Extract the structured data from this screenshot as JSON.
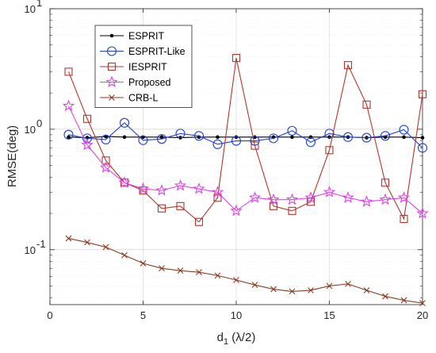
{
  "chart_data": {
    "type": "line",
    "xlabel": "d",
    "xlabel_sub": "1",
    "xlabel_suffix": " (λ/2)",
    "ylabel": "RMSE(deg)",
    "xlim": [
      0,
      20
    ],
    "ylim": [
      0.035,
      10
    ],
    "yscale": "log",
    "xticks": [
      0,
      5,
      10,
      15,
      20
    ],
    "yticks": [
      {
        "value": 0.1,
        "base": "10",
        "exp": "-1"
      },
      {
        "value": 1,
        "base": "10",
        "exp": "0"
      },
      {
        "value": 10,
        "base": "10",
        "exp": "1"
      }
    ],
    "grid": true,
    "legend_position": "top-left",
    "x": [
      1,
      2,
      3,
      4,
      5,
      6,
      7,
      8,
      9,
      10,
      11,
      12,
      13,
      14,
      15,
      16,
      17,
      18,
      19,
      20
    ],
    "series": [
      {
        "name": "ESPRIT",
        "color": "#000000",
        "marker": "dot",
        "values": [
          0.86,
          0.85,
          0.87,
          0.86,
          0.86,
          0.86,
          0.85,
          0.86,
          0.86,
          0.86,
          0.86,
          0.86,
          0.86,
          0.86,
          0.86,
          0.86,
          0.85,
          0.86,
          0.86,
          0.85
        ]
      },
      {
        "name": "ESPRIT-Like",
        "color": "#1f3fd0",
        "marker": "circle",
        "values": [
          0.9,
          0.84,
          0.82,
          1.13,
          0.81,
          0.83,
          0.92,
          0.88,
          0.75,
          0.8,
          0.8,
          0.84,
          0.97,
          0.78,
          0.92,
          0.86,
          0.85,
          0.88,
          0.99,
          0.7
        ]
      },
      {
        "name": "IESPRIT",
        "color": "#b5352a",
        "marker": "square",
        "values": [
          3.0,
          1.22,
          0.55,
          0.36,
          0.31,
          0.22,
          0.23,
          0.17,
          0.27,
          3.9,
          0.73,
          0.23,
          0.21,
          0.25,
          0.67,
          3.4,
          1.6,
          0.36,
          0.18,
          1.95
        ]
      },
      {
        "name": "Proposed",
        "color": "#e040e8",
        "marker": "star",
        "values": [
          1.56,
          0.74,
          0.48,
          0.36,
          0.32,
          0.31,
          0.34,
          0.32,
          0.3,
          0.21,
          0.27,
          0.26,
          0.26,
          0.27,
          0.3,
          0.27,
          0.25,
          0.26,
          0.27,
          0.2
        ]
      },
      {
        "name": "CRB-L",
        "color": "#8e3b1f",
        "marker": "x",
        "values": [
          0.124,
          0.115,
          0.105,
          0.09,
          0.077,
          0.07,
          0.067,
          0.065,
          0.061,
          0.056,
          0.051,
          0.047,
          0.045,
          0.046,
          0.05,
          0.052,
          0.046,
          0.041,
          0.038,
          0.036
        ]
      }
    ]
  }
}
